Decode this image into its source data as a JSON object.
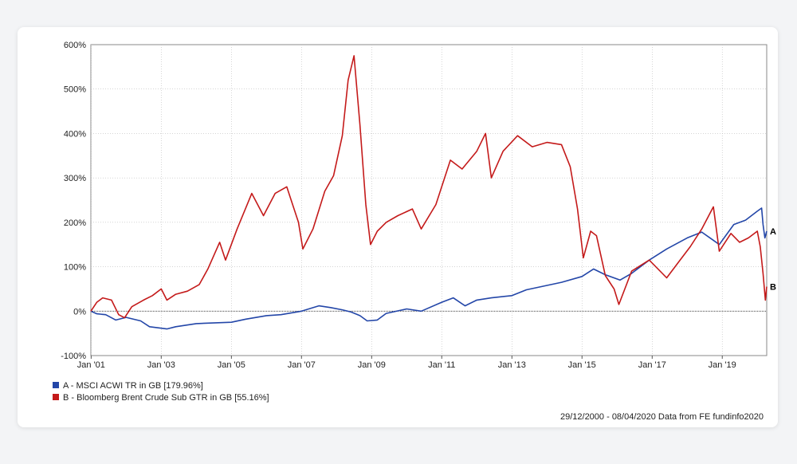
{
  "chart_data": {
    "type": "line",
    "xlim": [
      "2000-12-29",
      "2020-04-08"
    ],
    "ylim": [
      -100,
      600
    ],
    "y_ticks": [
      -100,
      0,
      100,
      200,
      300,
      400,
      500,
      600
    ],
    "y_tick_labels": [
      "-100%",
      "0%",
      "100%",
      "200%",
      "300%",
      "400%",
      "500%",
      "600%"
    ],
    "x_tick_labels": [
      "Jan '01",
      "Jan '03",
      "Jan '05",
      "Jan '07",
      "Jan '09",
      "Jan '11",
      "Jan '13",
      "Jan '15",
      "Jan '17",
      "Jan '19"
    ],
    "x_tick_dates": [
      "2001-01-01",
      "2003-01-01",
      "2005-01-01",
      "2007-01-01",
      "2009-01-01",
      "2011-01-01",
      "2013-01-01",
      "2015-01-01",
      "2017-01-01",
      "2019-01-01"
    ],
    "grid": true,
    "legend_position": "bottom-left",
    "series": [
      {
        "name": "A - MSCI ACWI TR in GB [179.96%]",
        "end_label": "A",
        "color": "#2346a8",
        "points": [
          [
            "2000-12-29",
            0
          ],
          [
            "2001-03-01",
            -6
          ],
          [
            "2001-06-01",
            -8
          ],
          [
            "2001-09-15",
            -20
          ],
          [
            "2002-01-01",
            -14
          ],
          [
            "2002-06-01",
            -22
          ],
          [
            "2002-09-01",
            -35
          ],
          [
            "2003-03-01",
            -40
          ],
          [
            "2003-06-01",
            -35
          ],
          [
            "2004-01-01",
            -28
          ],
          [
            "2005-01-01",
            -25
          ],
          [
            "2005-06-01",
            -18
          ],
          [
            "2006-01-01",
            -10
          ],
          [
            "2006-06-01",
            -8
          ],
          [
            "2007-01-01",
            0
          ],
          [
            "2007-07-01",
            12
          ],
          [
            "2007-11-01",
            8
          ],
          [
            "2008-03-01",
            3
          ],
          [
            "2008-06-01",
            -2
          ],
          [
            "2008-09-01",
            -10
          ],
          [
            "2008-11-15",
            -22
          ],
          [
            "2009-03-01",
            -20
          ],
          [
            "2009-06-01",
            -5
          ],
          [
            "2010-01-01",
            5
          ],
          [
            "2010-06-01",
            0
          ],
          [
            "2011-01-01",
            20
          ],
          [
            "2011-05-01",
            30
          ],
          [
            "2011-09-01",
            12
          ],
          [
            "2012-01-01",
            25
          ],
          [
            "2012-06-01",
            30
          ],
          [
            "2013-01-01",
            35
          ],
          [
            "2013-06-01",
            48
          ],
          [
            "2014-01-01",
            58
          ],
          [
            "2014-06-01",
            65
          ],
          [
            "2015-01-01",
            78
          ],
          [
            "2015-05-01",
            95
          ],
          [
            "2015-09-01",
            82
          ],
          [
            "2016-02-01",
            70
          ],
          [
            "2016-06-01",
            85
          ],
          [
            "2016-12-01",
            115
          ],
          [
            "2017-06-01",
            140
          ],
          [
            "2018-01-01",
            165
          ],
          [
            "2018-06-01",
            178
          ],
          [
            "2018-12-01",
            150
          ],
          [
            "2019-05-01",
            195
          ],
          [
            "2019-09-01",
            205
          ],
          [
            "2020-01-01",
            225
          ],
          [
            "2020-02-15",
            232
          ],
          [
            "2020-03-01",
            195
          ],
          [
            "2020-03-20",
            165
          ],
          [
            "2020-04-08",
            180
          ]
        ]
      },
      {
        "name": "B - Bloomberg Brent Crude Sub GTR in GB [55.16%]",
        "end_label": "B",
        "color": "#c41a1a",
        "points": [
          [
            "2000-12-29",
            0
          ],
          [
            "2001-03-01",
            20
          ],
          [
            "2001-05-01",
            30
          ],
          [
            "2001-08-01",
            25
          ],
          [
            "2001-10-15",
            -8
          ],
          [
            "2001-12-15",
            -15
          ],
          [
            "2002-03-01",
            10
          ],
          [
            "2002-07-01",
            25
          ],
          [
            "2002-10-01",
            35
          ],
          [
            "2003-01-01",
            50
          ],
          [
            "2003-03-01",
            25
          ],
          [
            "2003-06-01",
            38
          ],
          [
            "2003-10-01",
            45
          ],
          [
            "2004-02-01",
            60
          ],
          [
            "2004-05-01",
            95
          ],
          [
            "2004-09-01",
            155
          ],
          [
            "2004-11-01",
            115
          ],
          [
            "2005-03-01",
            185
          ],
          [
            "2005-08-01",
            265
          ],
          [
            "2005-12-01",
            215
          ],
          [
            "2006-04-01",
            265
          ],
          [
            "2006-08-01",
            280
          ],
          [
            "2006-12-01",
            200
          ],
          [
            "2007-01-15",
            140
          ],
          [
            "2007-05-01",
            185
          ],
          [
            "2007-09-01",
            270
          ],
          [
            "2007-12-01",
            305
          ],
          [
            "2008-03-01",
            395
          ],
          [
            "2008-05-01",
            520
          ],
          [
            "2008-07-01",
            575
          ],
          [
            "2008-09-01",
            420
          ],
          [
            "2008-11-01",
            240
          ],
          [
            "2008-12-20",
            150
          ],
          [
            "2009-03-01",
            180
          ],
          [
            "2009-06-01",
            200
          ],
          [
            "2009-10-01",
            215
          ],
          [
            "2010-03-01",
            230
          ],
          [
            "2010-06-01",
            185
          ],
          [
            "2010-11-01",
            240
          ],
          [
            "2011-04-01",
            340
          ],
          [
            "2011-08-01",
            320
          ],
          [
            "2012-01-01",
            360
          ],
          [
            "2012-04-01",
            400
          ],
          [
            "2012-06-01",
            300
          ],
          [
            "2012-10-01",
            360
          ],
          [
            "2013-03-01",
            395
          ],
          [
            "2013-08-01",
            370
          ],
          [
            "2014-01-01",
            380
          ],
          [
            "2014-06-01",
            375
          ],
          [
            "2014-09-01",
            325
          ],
          [
            "2014-11-15",
            230
          ],
          [
            "2015-01-15",
            120
          ],
          [
            "2015-04-01",
            180
          ],
          [
            "2015-06-01",
            170
          ],
          [
            "2015-09-01",
            80
          ],
          [
            "2015-12-01",
            50
          ],
          [
            "2016-01-20",
            15
          ],
          [
            "2016-06-01",
            90
          ],
          [
            "2016-12-01",
            115
          ],
          [
            "2017-06-01",
            75
          ],
          [
            "2017-10-01",
            110
          ],
          [
            "2018-02-01",
            145
          ],
          [
            "2018-06-01",
            185
          ],
          [
            "2018-10-01",
            235
          ],
          [
            "2018-12-01",
            135
          ],
          [
            "2019-04-01",
            175
          ],
          [
            "2019-07-01",
            155
          ],
          [
            "2019-10-01",
            165
          ],
          [
            "2020-01-01",
            180
          ],
          [
            "2020-02-01",
            145
          ],
          [
            "2020-03-01",
            85
          ],
          [
            "2020-03-25",
            25
          ],
          [
            "2020-04-08",
            55
          ]
        ]
      }
    ],
    "footer": "29/12/2000 - 08/04/2020 Data from FE fundinfo2020"
  }
}
